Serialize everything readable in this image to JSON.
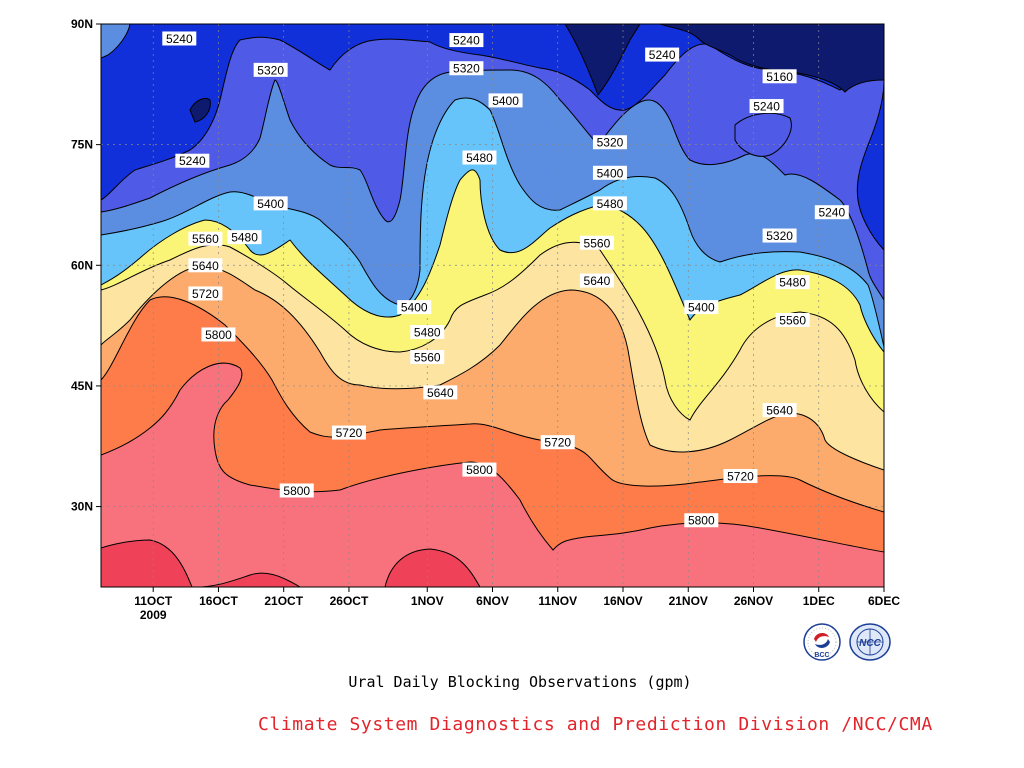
{
  "chart_data": {
    "type": "contour",
    "title": "Ural Daily Blocking Observations (gpm)",
    "x_tick_labels": [
      "11OCT",
      "16OCT",
      "21OCT",
      "26OCT",
      "1NOV",
      "6NOV",
      "11NOV",
      "16NOV",
      "21NOV",
      "26NOV",
      "1DEC",
      "6DEC"
    ],
    "x_year_label": "2009",
    "y_tick_labels": [
      "90N",
      "75N",
      "60N",
      "45N",
      "30N"
    ],
    "x_range": [
      "2009-10-07",
      "2009-12-06"
    ],
    "y_range": [
      20,
      90
    ],
    "contour_levels": [
      5160,
      5240,
      5320,
      5400,
      5480,
      5560,
      5640,
      5720,
      5800,
      5880
    ],
    "level_colors": [
      "#0e1a6e",
      "#1130d9",
      "#4f5ae6",
      "#5b8de0",
      "#66c4fb",
      "#faf577",
      "#fde4a1",
      "#fcab6c",
      "#fd7c4a",
      "#f7727c",
      "#ef4158"
    ],
    "contour_labels": [
      {
        "text": "5240",
        "lat": 88.2,
        "date": "2009-10-13"
      },
      {
        "text": "5240",
        "lat": 88.0,
        "date": "2009-11-04"
      },
      {
        "text": "5240",
        "lat": 86.2,
        "date": "2009-11-19"
      },
      {
        "text": "5320",
        "lat": 84.3,
        "date": "2009-10-20"
      },
      {
        "text": "5320",
        "lat": 84.5,
        "date": "2009-11-04"
      },
      {
        "text": "5160",
        "lat": 83.5,
        "date": "2009-11-28"
      },
      {
        "text": "5400",
        "lat": 80.5,
        "date": "2009-11-07"
      },
      {
        "text": "5240",
        "lat": 79.8,
        "date": "2009-11-27"
      },
      {
        "text": "5320",
        "lat": 75.3,
        "date": "2009-11-15"
      },
      {
        "text": "5480",
        "lat": 73.4,
        "date": "2009-11-05"
      },
      {
        "text": "5240",
        "lat": 73.0,
        "date": "2009-10-14"
      },
      {
        "text": "5400",
        "lat": 71.5,
        "date": "2009-11-15"
      },
      {
        "text": "5480",
        "lat": 67.7,
        "date": "2009-11-15"
      },
      {
        "text": "5400",
        "lat": 67.7,
        "date": "2009-10-20"
      },
      {
        "text": "5240",
        "lat": 66.6,
        "date": "2009-12-02"
      },
      {
        "text": "5480",
        "lat": 63.5,
        "date": "2009-10-18"
      },
      {
        "text": "5560",
        "lat": 63.3,
        "date": "2009-10-15"
      },
      {
        "text": "5320",
        "lat": 63.7,
        "date": "2009-11-28"
      },
      {
        "text": "5560",
        "lat": 62.8,
        "date": "2009-11-14"
      },
      {
        "text": "5640",
        "lat": 60.0,
        "date": "2009-10-15"
      },
      {
        "text": "5640",
        "lat": 58.1,
        "date": "2009-11-14"
      },
      {
        "text": "5480",
        "lat": 57.9,
        "date": "2009-11-29"
      },
      {
        "text": "5720",
        "lat": 56.5,
        "date": "2009-10-15"
      },
      {
        "text": "5400",
        "lat": 54.8,
        "date": "2009-10-31"
      },
      {
        "text": "5400",
        "lat": 54.8,
        "date": "2009-11-22"
      },
      {
        "text": "5560",
        "lat": 53.2,
        "date": "2009-11-29"
      },
      {
        "text": "5480",
        "lat": 51.7,
        "date": "2009-11-01"
      },
      {
        "text": "5800",
        "lat": 51.4,
        "date": "2009-10-16"
      },
      {
        "text": "5560",
        "lat": 48.6,
        "date": "2009-11-01"
      },
      {
        "text": "5640",
        "lat": 44.2,
        "date": "2009-11-02"
      },
      {
        "text": "5640",
        "lat": 42.0,
        "date": "2009-11-28"
      },
      {
        "text": "5720",
        "lat": 39.2,
        "date": "2009-10-26"
      },
      {
        "text": "5720",
        "lat": 38.0,
        "date": "2009-11-11"
      },
      {
        "text": "5720",
        "lat": 33.8,
        "date": "2009-11-25"
      },
      {
        "text": "5800",
        "lat": 34.6,
        "date": "2009-11-05"
      },
      {
        "text": "5800",
        "lat": 32.0,
        "date": "2009-10-22"
      },
      {
        "text": "5800",
        "lat": 28.3,
        "date": "2009-11-22"
      }
    ]
  },
  "footer": {
    "credit": "Climate System Diagnostics and Prediction Division /NCC/CMA"
  },
  "logos": [
    {
      "name": "bcc-logo",
      "text": "BCC"
    },
    {
      "name": "ncc-logo",
      "text": "NCC"
    }
  ]
}
